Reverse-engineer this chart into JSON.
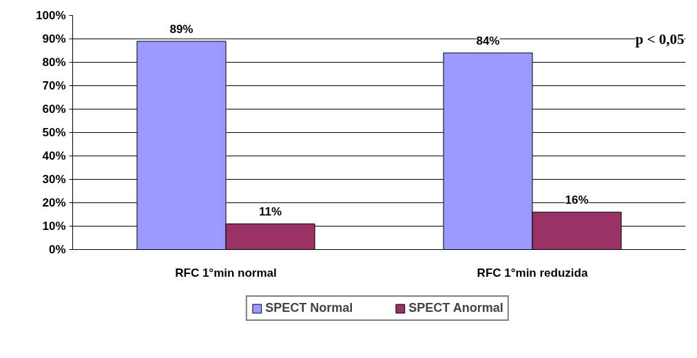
{
  "chart_data": {
    "type": "bar",
    "categories": [
      "RFC 1°min normal",
      "RFC 1°min reduzida"
    ],
    "series": [
      {
        "name": "SPECT Normal",
        "color": "#9999ff",
        "values": [
          89,
          84
        ],
        "value_labels": [
          "89%",
          "84%"
        ]
      },
      {
        "name": "SPECT Anormal",
        "color": "#993366",
        "values": [
          11,
          16
        ],
        "value_labels": [
          "11%",
          "16%"
        ]
      }
    ],
    "ylim": [
      0,
      100
    ],
    "yticks": [
      {
        "value": 0,
        "label": "0%"
      },
      {
        "value": 10,
        "label": "10%"
      },
      {
        "value": 20,
        "label": "20%"
      },
      {
        "value": 30,
        "label": "30%"
      },
      {
        "value": 40,
        "label": "40%"
      },
      {
        "value": 50,
        "label": "50%"
      },
      {
        "value": 60,
        "label": "60%"
      },
      {
        "value": 70,
        "label": "70%"
      },
      {
        "value": 80,
        "label": "80%"
      },
      {
        "value": 90,
        "label": "90%"
      },
      {
        "value": 100,
        "label": "100%"
      }
    ],
    "grid": "y",
    "legend": "bottom",
    "annotations": [
      "p < 0,05"
    ]
  }
}
